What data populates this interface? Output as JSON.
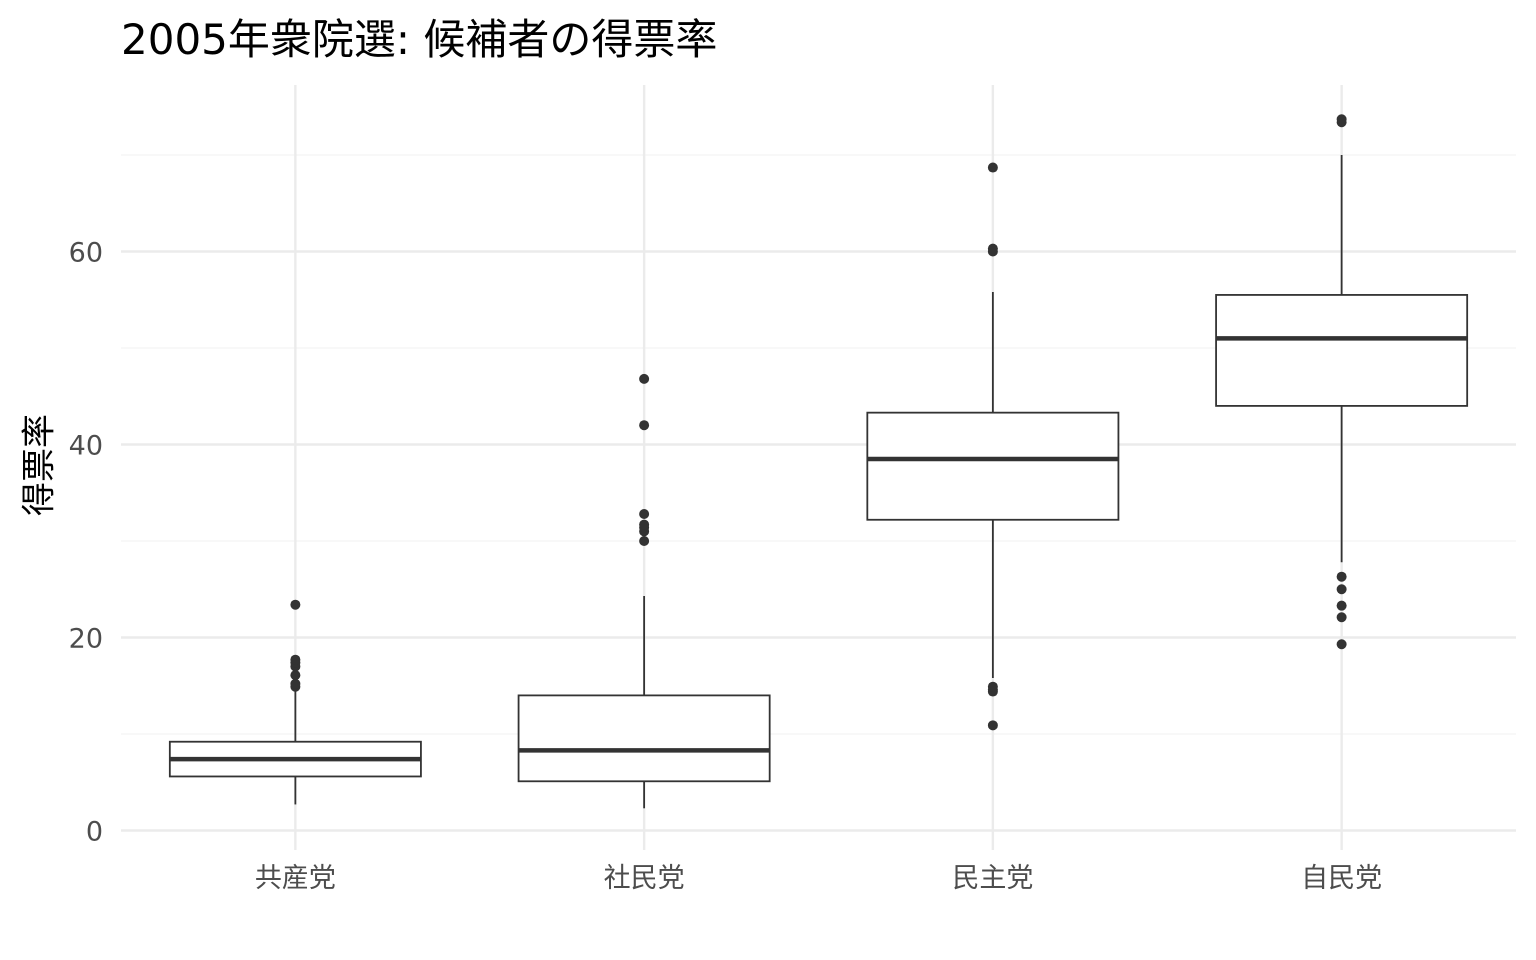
{
  "chart_data": {
    "type": "box",
    "title": "2005年衆院選: 候補者の得票率",
    "xlabel": "",
    "ylabel": "得票率",
    "ylim": [
      -1.5,
      77
    ],
    "yticks": [
      0,
      20,
      40,
      60
    ],
    "grid": true,
    "legend": "none",
    "categories": [
      "共産党",
      "社民党",
      "民主党",
      "自民党"
    ],
    "boxes": [
      {
        "category": "共産党",
        "whisker_low": 2.7,
        "q1": 5.6,
        "median": 7.4,
        "q3": 9.2,
        "whisker_high": 14.5,
        "outliers": [
          14.9,
          15.2,
          16.1,
          17.0,
          17.4,
          17.7,
          23.4
        ]
      },
      {
        "category": "社民党",
        "whisker_low": 2.3,
        "q1": 5.1,
        "median": 8.3,
        "q3": 14.0,
        "whisker_high": 24.3,
        "outliers": [
          30.0,
          31.0,
          31.4,
          31.7,
          32.8,
          42.0,
          46.8
        ]
      },
      {
        "category": "民主党",
        "whisker_low": 15.8,
        "q1": 32.2,
        "median": 38.5,
        "q3": 43.3,
        "whisker_high": 55.8,
        "outliers": [
          10.9,
          14.4,
          14.6,
          14.9,
          60.0,
          60.3,
          68.7
        ]
      },
      {
        "category": "自民党",
        "whisker_low": 27.8,
        "q1": 44.0,
        "median": 51.0,
        "q3": 55.5,
        "whisker_high": 70.0,
        "outliers": [
          19.3,
          22.1,
          23.3,
          25.0,
          26.3,
          73.4,
          73.7
        ]
      }
    ]
  },
  "colors": {
    "grid_major": "#ebebeb",
    "grid_minor": "#f3f3f3",
    "box_stroke": "#333333",
    "median": "#333333",
    "outlier": "#333333",
    "tick_text": "#4d4d4d"
  }
}
